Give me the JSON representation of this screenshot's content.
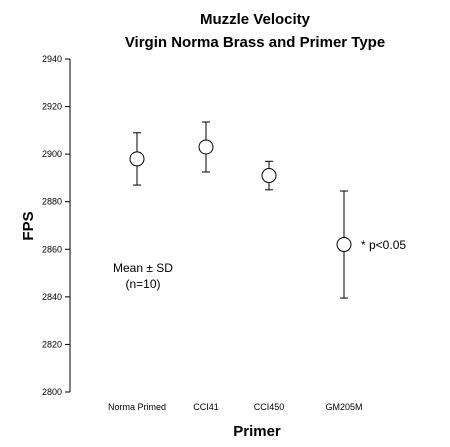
{
  "chart_data": {
    "type": "scatter",
    "title": "Muzzle Velocity",
    "subtitle": "Virgin Norma Brass and Primer Type",
    "xlabel": "Primer",
    "ylabel": "FPS",
    "ylim": [
      2800,
      2940
    ],
    "yticks": [
      2800,
      2820,
      2840,
      2860,
      2880,
      2900,
      2920,
      2940
    ],
    "categories": [
      "Norma Primed",
      "CCI41",
      "CCI450",
      "GM205M"
    ],
    "means": [
      2898,
      2903,
      2891,
      2862
    ],
    "sd": [
      11,
      10.5,
      6,
      22.5
    ],
    "grid": false,
    "annotations": {
      "stat_line1": "Mean ± SD",
      "stat_line2": "(n=10)",
      "significance": "* p<0.05"
    }
  }
}
